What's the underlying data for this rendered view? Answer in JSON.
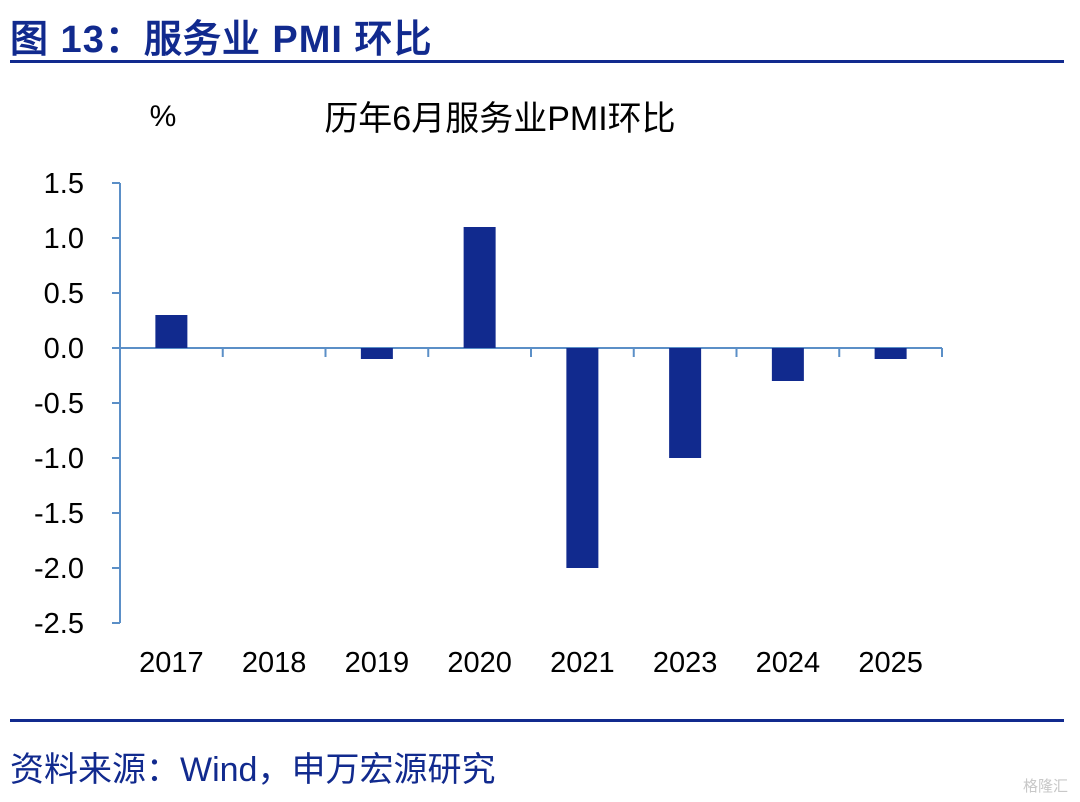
{
  "figure": {
    "title": "图 13：服务业 PMI 环比",
    "source": "资料来源：Wind，申万宏源研究",
    "watermark": "格隆汇"
  },
  "chart_data": {
    "type": "bar",
    "title": "历年6月服务业PMI环比",
    "ylabel": "%",
    "xlabel": "",
    "categories": [
      "2017",
      "2018",
      "2019",
      "2020",
      "2021",
      "2023",
      "2024",
      "2025"
    ],
    "values": [
      0.3,
      0.0,
      -0.1,
      1.1,
      -2.0,
      -1.0,
      -0.3,
      -0.1
    ],
    "ylim": [
      -2.5,
      1.5
    ],
    "yticks": [
      "1.5",
      "1.0",
      "0.5",
      "0.0",
      "-0.5",
      "-1.0",
      "-1.5",
      "-2.0",
      "-2.5"
    ],
    "ytick_values": [
      1.5,
      1.0,
      0.5,
      0.0,
      -0.5,
      -1.0,
      -1.5,
      -2.0,
      -2.5
    ],
    "grid": false,
    "legend": "none",
    "bar_color": "#112A8E",
    "axis_color": "#5B8FC7"
  }
}
